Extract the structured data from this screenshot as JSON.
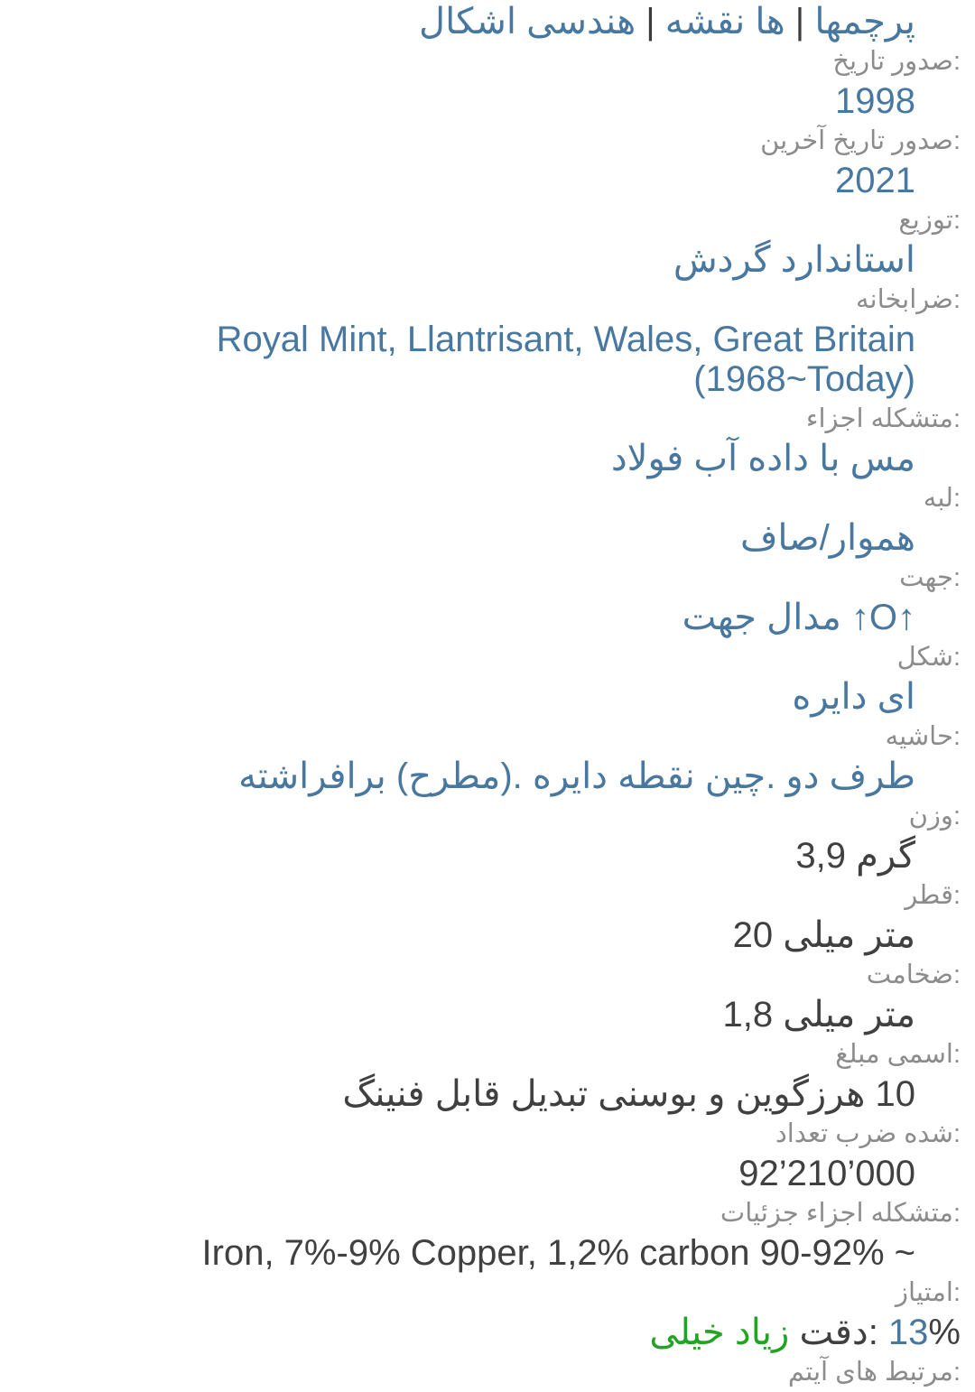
{
  "colors": {
    "link_blue": "#4878a0",
    "label_gray": "#8c8c8c",
    "text_dark": "#404040",
    "accent_green": "#22a422"
  },
  "theme_links": {
    "separator": " | ",
    "items": [
      "اشکال هندسی",
      "نقشه ها",
      "پرچمها"
    ]
  },
  "fields": [
    {
      "name": "issue-date",
      "label": "تاریخ صدور:",
      "value": "1998",
      "link": true
    },
    {
      "name": "last-issue-date",
      "label": "آخرین تاریخ صدور:",
      "value": "2021",
      "link": true
    },
    {
      "name": "distribution",
      "label": "توزیع:",
      "value": "گردش استاندارد",
      "link": true
    },
    {
      "name": "mint",
      "label": "ضرابخانه:",
      "value": "Royal Mint, Llantrisant, Wales, Great Britain (1968~Today)",
      "link": true
    },
    {
      "name": "composition",
      "label": "اجزاء متشکله:",
      "value": "فولاد آب داده با مس",
      "link": true
    },
    {
      "name": "edge",
      "label": "لبه:",
      "value": "صاف/هموار",
      "link": true
    },
    {
      "name": "orientation",
      "label": "جهت:",
      "value": "جهت مدال ↑O↑",
      "link": true
    },
    {
      "name": "shape",
      "label": "شکل:",
      "value": "دایره ای",
      "link": true
    },
    {
      "name": "border",
      "label": "حاشیه:",
      "value": "برافراشته (مطرح). دایره نقطه چین. دو طرف",
      "link": true
    },
    {
      "name": "weight",
      "label": "وزن:",
      "value": "3,9 گرم",
      "link": false
    },
    {
      "name": "diameter",
      "label": "قطر:",
      "value": "20 میلی متر",
      "link": false
    },
    {
      "name": "thickness",
      "label": "ضخامت:",
      "value": "1,8 میلی متر",
      "link": false
    },
    {
      "name": "face-value",
      "label": "مبلغ اسمی:",
      "value": "فنینگ قابل تبدیل بوسنی و هرزگوین 10",
      "link": false
    },
    {
      "name": "mintage",
      "label": "تعداد ضرب شده:",
      "value": "92’210’000",
      "link": false
    },
    {
      "name": "composition-details",
      "label": "جزئیات اجزاء متشکله:",
      "value": "Iron, 7%-9% Copper, 1,2% carbon 90-92% ~",
      "link": false
    }
  ],
  "score": {
    "label": "امتیاز:",
    "accuracy_value": "خیلی زیاد",
    "accuracy_label": " دقت: ",
    "percent": "13",
    "percent_sign": "%"
  },
  "related_items_label": "آیتم های مرتبط:"
}
